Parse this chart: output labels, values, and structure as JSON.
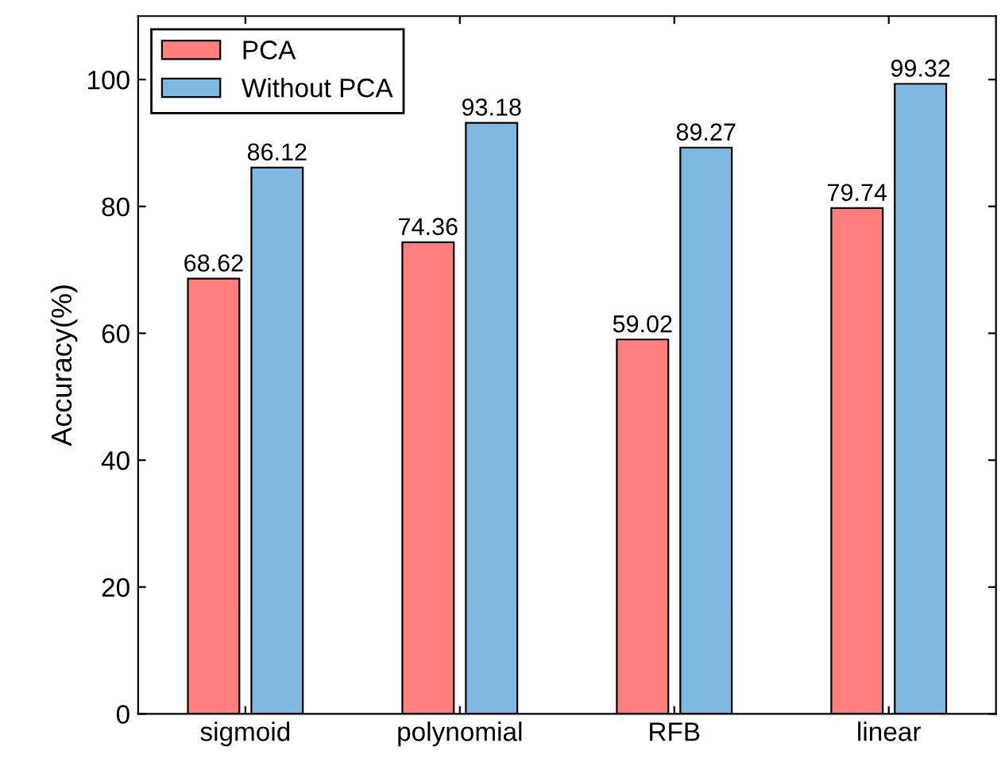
{
  "chart_data": {
    "type": "bar",
    "ylabel": "Accuracy(%)",
    "categories": [
      "sigmoid",
      "polynomial",
      "RFB",
      "linear"
    ],
    "series": [
      {
        "name": "PCA",
        "color": "#ff7f7f",
        "values": [
          68.62,
          74.36,
          59.02,
          79.74
        ]
      },
      {
        "name": "Without PCA",
        "color": "#7fb8e0",
        "values": [
          86.12,
          93.18,
          89.27,
          99.32
        ]
      }
    ],
    "ylim": [
      0,
      110
    ],
    "yticks": [
      0,
      20,
      40,
      60,
      80,
      100
    ],
    "data_labels": true,
    "legend": "top left",
    "grid": false
  }
}
